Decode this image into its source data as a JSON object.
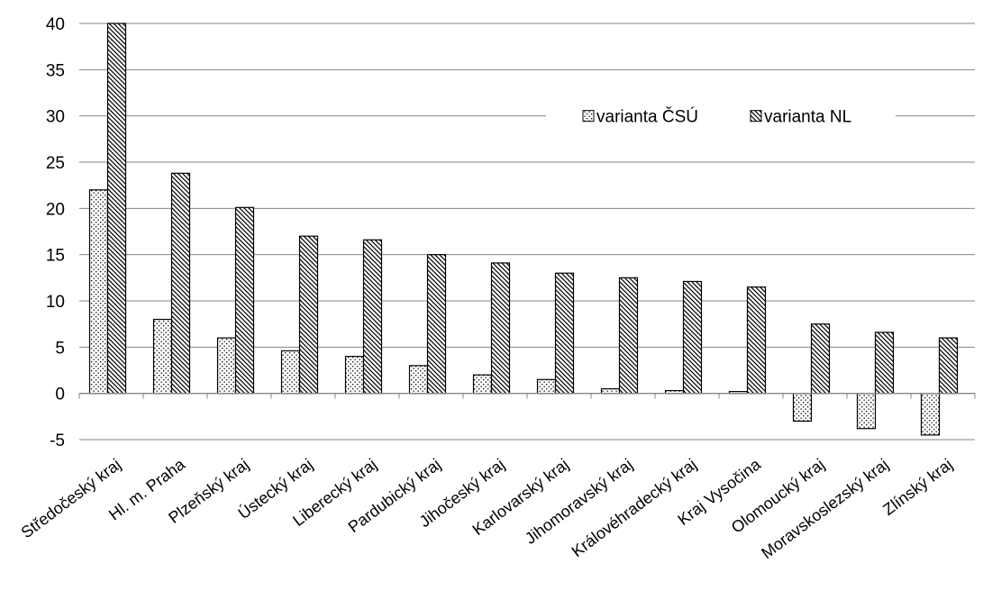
{
  "chart_data": {
    "type": "bar",
    "categories": [
      "Středočeský kraj",
      "Hl. m. Praha",
      "Plzeňský kraj",
      "Ústecký kraj",
      "Liberecký kraj",
      "Pardubický kraj",
      "Jihočeský kraj",
      "Karlovarský kraj",
      "Jihomoravský kraj",
      "Královéhradecký kraj",
      "Kraj Vysočina",
      "Olomoucký kraj",
      "Moravskoslezský kraj",
      "Zlínský kraj"
    ],
    "series": [
      {
        "name": "varianta ČSÚ",
        "pattern": "dots",
        "values": [
          22,
          8,
          6,
          4.6,
          4,
          3,
          2,
          1.5,
          0.5,
          0.3,
          0.2,
          -3,
          -3.8,
          -4.5
        ]
      },
      {
        "name": "varianta NL",
        "pattern": "diagonal-hatch",
        "values": [
          40,
          23.8,
          20.1,
          17,
          16.6,
          15,
          14.1,
          13,
          12.5,
          12.1,
          11.5,
          7.5,
          6.6,
          6
        ]
      }
    ],
    "yticks": [
      "-5",
      "0",
      "5",
      "10",
      "15",
      "20",
      "25",
      "30",
      "35",
      "40"
    ],
    "ylim": [
      -5,
      40
    ],
    "grid": true,
    "legend_position": "top-right",
    "title": "",
    "xlabel": "",
    "ylabel": ""
  }
}
